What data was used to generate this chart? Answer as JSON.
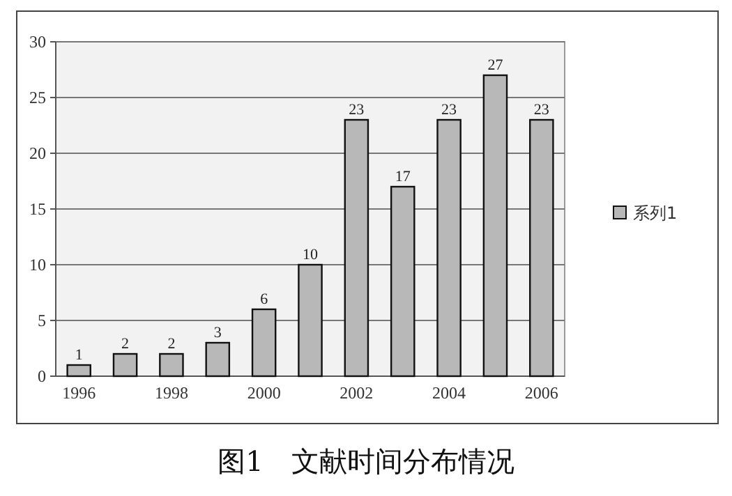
{
  "chart_data": {
    "type": "bar",
    "title": "图1　文献时间分布情况",
    "categories": [
      "1996",
      null,
      "1998",
      null,
      "2000",
      null,
      "2002",
      null,
      "2004",
      null,
      "2006"
    ],
    "series": [
      {
        "name": "系列1",
        "color": "#b8b8b8",
        "values": [
          1,
          2,
          2,
          3,
          6,
          10,
          23,
          17,
          23,
          27,
          23
        ]
      }
    ],
    "ylim": [
      0,
      30
    ],
    "yticks": [
      0,
      5,
      10,
      15,
      20,
      25,
      30
    ],
    "grid": "y",
    "legend": "right",
    "data_labels": true
  }
}
